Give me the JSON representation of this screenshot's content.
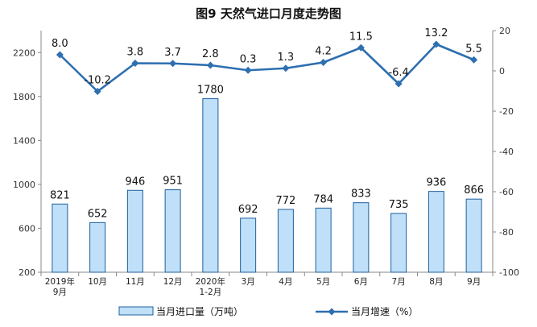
{
  "chart_data": {
    "type": "bar",
    "title": "图9  天然气进口月度走势图",
    "categories": [
      "2019年|9月",
      "10月",
      "11月",
      "12月",
      "2020年|1-2月",
      "3月",
      "4月",
      "5月",
      "6月",
      "7月",
      "8月",
      "9月"
    ],
    "series": [
      {
        "name": "当月进口量（万吨）",
        "type": "bar",
        "axis": "left",
        "color": "#bfe0f8",
        "values": [
          821,
          652,
          946,
          951,
          1780,
          692,
          772,
          784,
          833,
          735,
          936,
          866
        ],
        "labels": [
          "821",
          "652",
          "946",
          "951",
          "1780",
          "692",
          "772",
          "784",
          "833",
          "735",
          "936",
          "866"
        ]
      },
      {
        "name": "当月增速（%）",
        "type": "line",
        "axis": "right",
        "color": "#2e6fb0",
        "values": [
          8.0,
          -10.2,
          3.8,
          3.7,
          2.8,
          0.3,
          1.3,
          4.2,
          11.5,
          -6.4,
          13.2,
          5.5
        ],
        "labels": [
          "8.0",
          "-10.2",
          "3.8",
          "3.7",
          "2.8",
          "0.3",
          "1.3",
          "4.2",
          "11.5",
          "-6.4",
          "13.2",
          "5.5"
        ]
      }
    ],
    "y_left": {
      "min": 200,
      "max": 2400,
      "ticks": [
        "200",
        "600",
        "1000",
        "1400",
        "1800",
        "2200"
      ]
    },
    "y_right": {
      "min": -100,
      "max": 20,
      "ticks": [
        "-100",
        "-80",
        "-60",
        "-40",
        "-20",
        "0",
        "20"
      ]
    },
    "grid": false,
    "legend": {
      "placement": "bottom",
      "items": [
        "当月进口量（万吨）",
        "当月增速（%）"
      ]
    }
  }
}
